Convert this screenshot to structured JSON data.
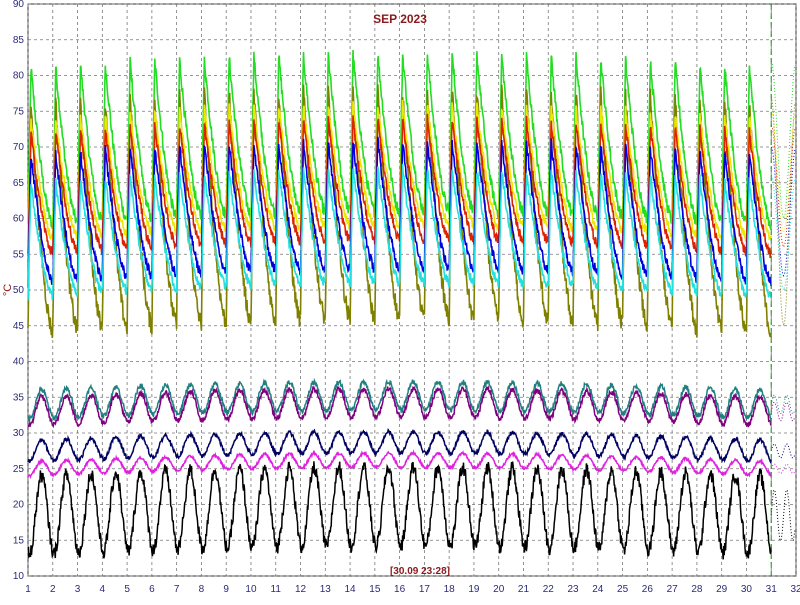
{
  "chart_data": {
    "type": "line",
    "title": "SEP 2023",
    "ylabel": "°C",
    "timestamp_label": "[30.09 23:28]",
    "xlim": [
      1,
      32
    ],
    "ylim": [
      10,
      90
    ],
    "x_ticks": [
      "1",
      "2",
      "3",
      "4",
      "5",
      "6",
      "7",
      "8",
      "9",
      "10",
      "11",
      "12",
      "13",
      "14",
      "15",
      "16",
      "17",
      "18",
      "19",
      "20",
      "21",
      "22",
      "23",
      "24",
      "25",
      "26",
      "27",
      "28",
      "29",
      "30",
      "31",
      "32"
    ],
    "y_ticks": [
      "10",
      "15",
      "20",
      "25",
      "30",
      "35",
      "40",
      "45",
      "50",
      "55",
      "60",
      "65",
      "70",
      "75",
      "80",
      "85",
      "90"
    ],
    "grid": true,
    "cursor_day": 31,
    "series": [
      {
        "color": "#22dd22",
        "daily_min": 60,
        "daily_max": 82
      },
      {
        "color": "#808000",
        "daily_min": 45,
        "daily_max": 77
      },
      {
        "color": "#e8e800",
        "daily_min": 58,
        "daily_max": 75
      },
      {
        "color": "#dd2200",
        "daily_min": 56,
        "daily_max": 73
      },
      {
        "color": "#0000dd",
        "daily_min": 52,
        "daily_max": 70
      },
      {
        "color": "#22e0e0",
        "daily_min": 50,
        "daily_max": 66
      },
      {
        "color": "#208080",
        "daily_min": 32,
        "daily_max": 36
      },
      {
        "color": "#800080",
        "daily_min": 31,
        "daily_max": 35
      },
      {
        "color": "#000060",
        "daily_min": 26,
        "daily_max": 29
      },
      {
        "color": "#e020e0",
        "daily_min": 24,
        "daily_max": 26
      },
      {
        "color": "#000000",
        "daily_min": 13,
        "daily_max": 24
      }
    ]
  }
}
